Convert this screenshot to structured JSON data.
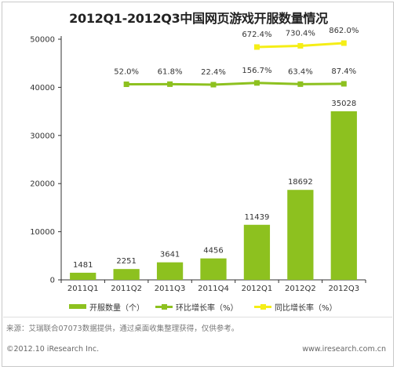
{
  "title": "2012Q1-2012Q3中国网页游戏开服数量情况",
  "chart_data": {
    "type": "bar",
    "categories": [
      "2011Q1",
      "2011Q2",
      "2011Q3",
      "2011Q4",
      "2012Q1",
      "2012Q2",
      "2012Q3"
    ],
    "ylim": [
      0,
      50000
    ],
    "yticks": [
      "0",
      "10000",
      "20000",
      "30000",
      "40000",
      "50000"
    ],
    "series": [
      {
        "name": "开服数量（个）",
        "kind": "bar",
        "color": "#8dc11f",
        "values": [
          1481,
          2251,
          3641,
          4456,
          11439,
          18692,
          35028
        ],
        "labels": [
          "1481",
          "2251",
          "3641",
          "4456",
          "11439",
          "18692",
          "35028"
        ]
      },
      {
        "name": "环比增长率（%）",
        "kind": "line",
        "color": "#8dc11f",
        "values": [
          null,
          52.0,
          61.8,
          22.4,
          156.7,
          63.4,
          87.4
        ],
        "labels": [
          "",
          "52.0%",
          "61.8%",
          "22.4%",
          "156.7%",
          "63.4%",
          "87.4%"
        ]
      },
      {
        "name": "同比增长率（%）",
        "kind": "line",
        "color": "#f5ee16",
        "values": [
          null,
          null,
          null,
          null,
          672.4,
          730.4,
          862.0
        ],
        "labels": [
          "",
          "",
          "",
          "",
          "672.4%",
          "730.4%",
          "862.0%"
        ]
      }
    ],
    "legend_position": "bottom",
    "grid": false
  },
  "source": "来源：艾瑞联合07073数据提供，通过桌面收集整理获得，仅供参考。",
  "footer": {
    "left": "©2012.10 iResearch Inc.",
    "right": "www.iresearch.com.cn"
  }
}
